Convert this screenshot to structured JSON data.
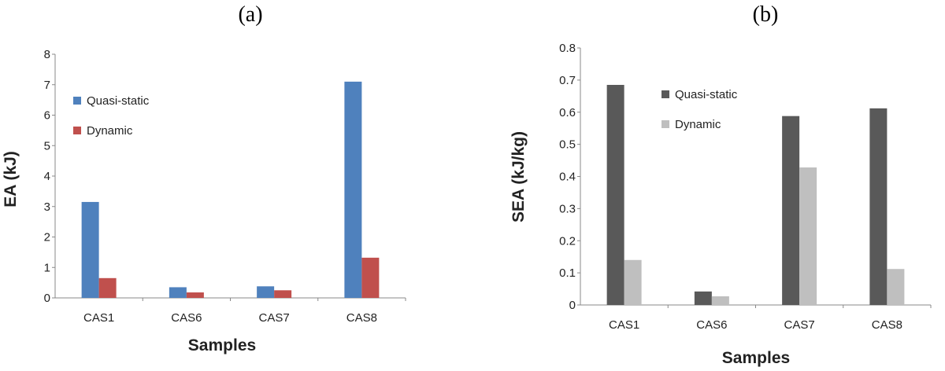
{
  "chart_data": [
    {
      "panel_label": "(a)",
      "type": "bar",
      "categories": [
        "CAS1",
        "CAS6",
        "CAS7",
        "CAS8"
      ],
      "series": [
        {
          "name": "Quasi-static",
          "values": [
            3.15,
            0.35,
            0.38,
            7.1
          ],
          "color": "#4f81bd"
        },
        {
          "name": "Dynamic",
          "values": [
            0.65,
            0.18,
            0.25,
            1.32
          ],
          "color": "#c0504d"
        }
      ],
      "xlabel": "Samples",
      "ylabel": "EA (kJ)",
      "ylim": [
        0,
        8
      ],
      "yticks": [
        "0",
        "1",
        "2",
        "3",
        "4",
        "5",
        "6",
        "7",
        "8"
      ],
      "grid": false,
      "legend_position": "top-left"
    },
    {
      "panel_label": "(b)",
      "type": "bar",
      "categories": [
        "CAS1",
        "CAS6",
        "CAS7",
        "CAS8"
      ],
      "series": [
        {
          "name": "Quasi-static",
          "values": [
            0.685,
            0.042,
            0.588,
            0.612
          ],
          "color": "#595959"
        },
        {
          "name": "Dynamic",
          "values": [
            0.14,
            0.027,
            0.428,
            0.112
          ],
          "color": "#bfbfbf"
        }
      ],
      "xlabel": "Samples",
      "ylabel": "SEA (kJ/kg)",
      "ylim": [
        0,
        0.8
      ],
      "yticks": [
        "0",
        "0.1",
        "0.2",
        "0.3",
        "0.4",
        "0.5",
        "0.6",
        "0.7",
        "0.8"
      ],
      "grid": false,
      "legend_position": "top-left"
    }
  ]
}
